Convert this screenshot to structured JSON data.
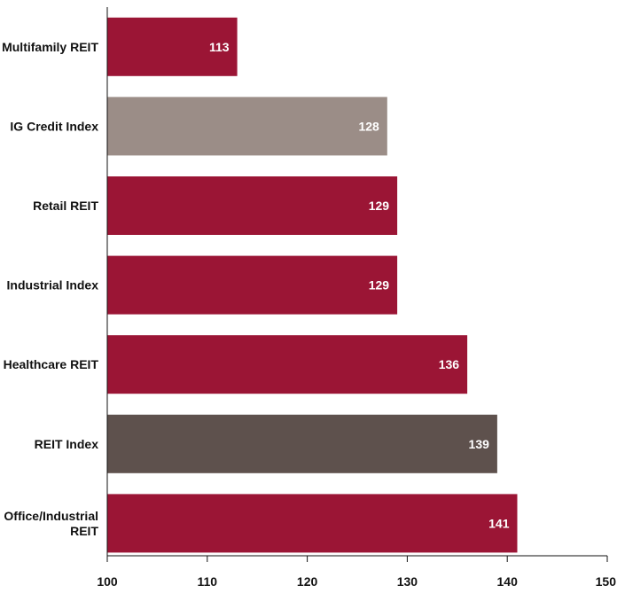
{
  "chart_data": {
    "type": "bar",
    "orientation": "horizontal",
    "title": "",
    "xlabel": "",
    "ylabel": "",
    "xlim": [
      100,
      150
    ],
    "x_ticks": [
      100,
      110,
      120,
      130,
      140,
      150
    ],
    "grid": false,
    "legend": "none",
    "value_labels": "inside-end",
    "categories": [
      [
        "Multifamily REIT"
      ],
      [
        "IG Credit Index"
      ],
      [
        "Retail REIT"
      ],
      [
        "Industrial Index"
      ],
      [
        "Healthcare REIT"
      ],
      [
        "REIT Index"
      ],
      [
        "Office/Industrial",
        "REIT"
      ]
    ],
    "values": [
      113,
      128,
      129,
      129,
      136,
      139,
      141
    ],
    "bar_colors": [
      "#9b1535",
      "#9b8d87",
      "#9b1535",
      "#9b1535",
      "#9b1535",
      "#5e514d",
      "#9b1535"
    ]
  }
}
